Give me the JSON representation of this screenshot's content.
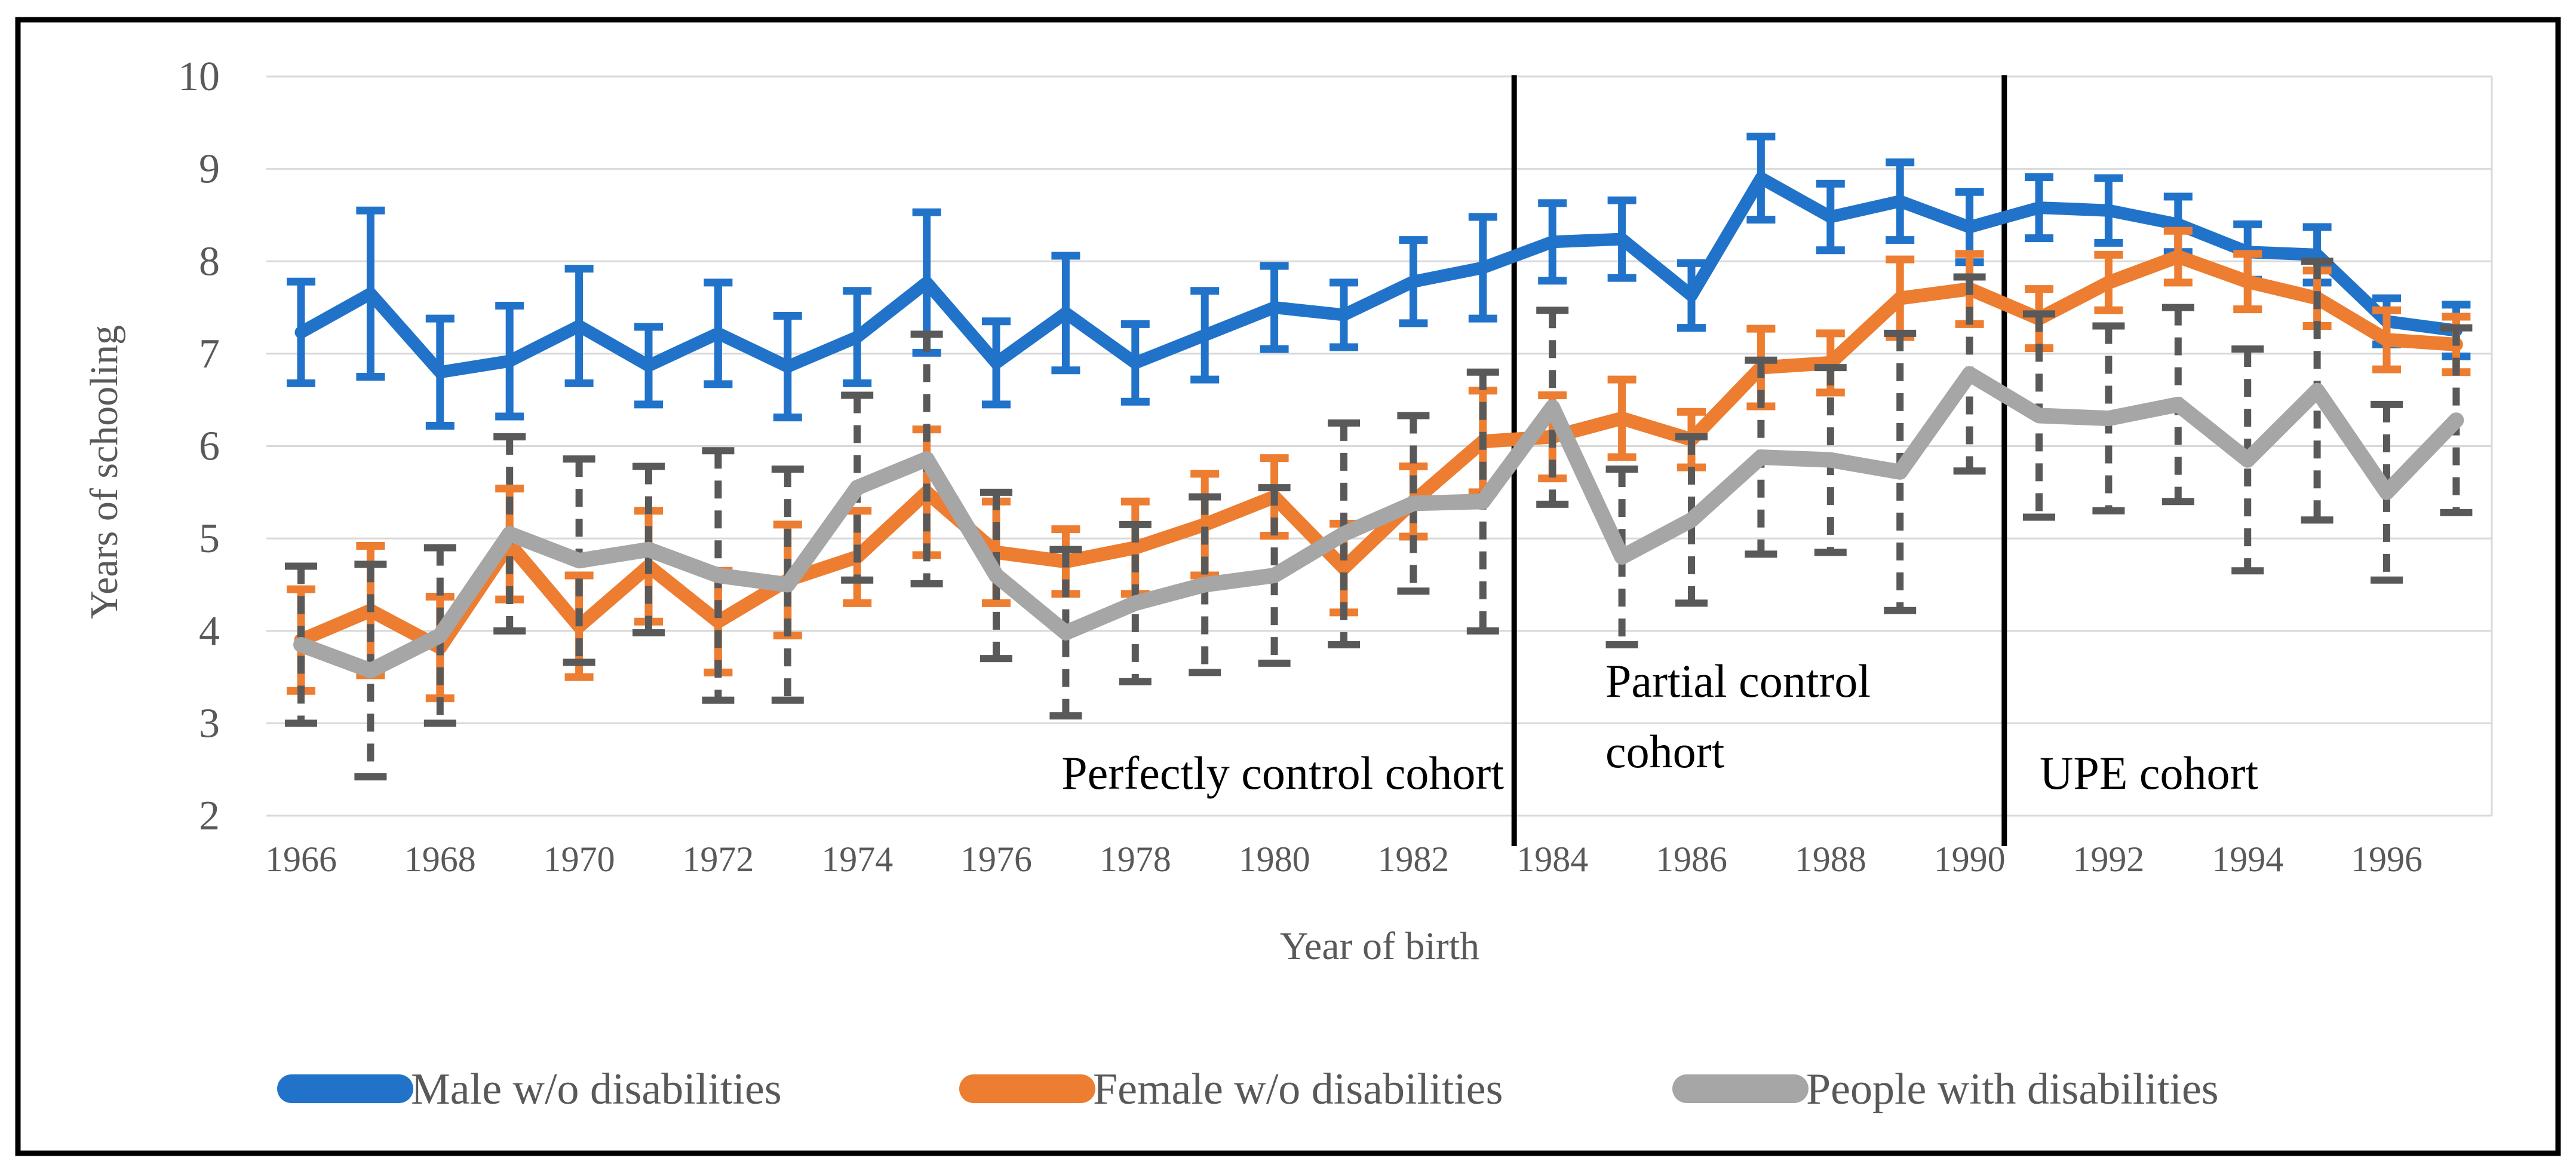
{
  "chart_data": {
    "type": "line",
    "title": "",
    "xlabel": "Year of birth",
    "ylabel": "Years of schooling",
    "x": [
      1966,
      1967,
      1968,
      1969,
      1970,
      1971,
      1972,
      1973,
      1974,
      1975,
      1976,
      1977,
      1978,
      1979,
      1980,
      1981,
      1982,
      1983,
      1984,
      1985,
      1986,
      1987,
      1988,
      1989,
      1990,
      1991,
      1992,
      1993,
      1994,
      1995,
      1996,
      1997
    ],
    "x_tick_labels": [
      "1966",
      "1968",
      "1970",
      "1972",
      "1974",
      "1976",
      "1978",
      "1980",
      "1982",
      "1984",
      "1986",
      "1988",
      "1990",
      "1992",
      "1994",
      "1996"
    ],
    "ylim": [
      2,
      10
    ],
    "yticks": [
      2,
      3,
      4,
      5,
      6,
      7,
      8,
      9,
      10
    ],
    "grid": "horizontal",
    "legend_position": "bottom",
    "series": [
      {
        "name": "Male w/o disabilities",
        "color": "#2173CA",
        "error_color": "#2173CA",
        "error_style": "solid",
        "values": [
          7.23,
          7.65,
          6.8,
          6.92,
          7.3,
          6.87,
          7.22,
          6.86,
          7.18,
          7.77,
          6.9,
          7.44,
          6.9,
          7.2,
          7.5,
          7.42,
          7.78,
          7.93,
          8.21,
          8.24,
          7.63,
          8.9,
          8.48,
          8.65,
          8.37,
          8.58,
          8.55,
          8.4,
          8.1,
          8.07,
          7.35,
          7.25
        ],
        "errors": [
          0.55,
          0.9,
          0.58,
          0.6,
          0.62,
          0.42,
          0.55,
          0.55,
          0.5,
          0.76,
          0.45,
          0.62,
          0.42,
          0.48,
          0.45,
          0.35,
          0.45,
          0.55,
          0.42,
          0.42,
          0.35,
          0.45,
          0.36,
          0.42,
          0.38,
          0.33,
          0.35,
          0.3,
          0.3,
          0.3,
          0.25,
          0.28
        ]
      },
      {
        "name": "Female w/o disabilities",
        "color": "#ED7D31",
        "error_color": "#ED7D31",
        "error_style": "solid",
        "values": [
          3.9,
          4.22,
          3.82,
          4.94,
          4.05,
          4.7,
          4.1,
          4.55,
          4.8,
          5.5,
          4.85,
          4.75,
          4.9,
          5.15,
          5.45,
          4.68,
          5.4,
          6.05,
          6.1,
          6.3,
          6.07,
          6.85,
          6.9,
          7.6,
          7.7,
          7.38,
          7.77,
          8.05,
          7.78,
          7.6,
          7.15,
          7.1
        ],
        "errors": [
          0.55,
          0.7,
          0.55,
          0.6,
          0.55,
          0.6,
          0.55,
          0.6,
          0.5,
          0.68,
          0.55,
          0.35,
          0.5,
          0.55,
          0.42,
          0.48,
          0.38,
          0.55,
          0.45,
          0.42,
          0.3,
          0.42,
          0.32,
          0.42,
          0.38,
          0.32,
          0.3,
          0.28,
          0.3,
          0.3,
          0.32,
          0.3
        ]
      },
      {
        "name": "People with disabilities",
        "color": "#A6A6A6",
        "error_color": "#595959",
        "error_style": "dashed",
        "values": [
          3.85,
          3.57,
          3.95,
          5.05,
          4.76,
          4.88,
          4.6,
          4.5,
          5.55,
          5.86,
          4.6,
          3.98,
          4.3,
          4.5,
          4.6,
          5.05,
          5.38,
          5.4,
          6.42,
          4.8,
          5.2,
          5.88,
          5.85,
          5.72,
          6.78,
          6.33,
          6.3,
          6.45,
          5.85,
          6.6,
          5.5,
          6.28
        ],
        "errors": [
          0.85,
          1.15,
          0.95,
          1.05,
          1.1,
          0.9,
          1.35,
          1.25,
          1.0,
          1.35,
          0.9,
          0.9,
          0.85,
          0.95,
          0.95,
          1.2,
          0.95,
          1.4,
          1.05,
          0.95,
          0.9,
          1.05,
          1.0,
          1.5,
          1.05,
          1.1,
          1.0,
          1.05,
          1.2,
          1.4,
          0.95,
          1.0
        ]
      }
    ],
    "dividers": [
      {
        "x": 1983.45
      },
      {
        "x": 1990.5
      }
    ],
    "annotations": {
      "perfectly": "Perfectly control cohort",
      "partial_line1": "Partial control",
      "partial_line2": "cohort",
      "upe": "UPE cohort"
    }
  },
  "legend": {
    "items": [
      {
        "label": "Male w/o disabilities",
        "color": "#2173CA"
      },
      {
        "label": "Female w/o disabilities",
        "color": "#ED7D31"
      },
      {
        "label": "People with disabilities",
        "color": "#A6A6A6"
      }
    ]
  },
  "colors": {
    "axis_text": "#595959",
    "gridline": "#D9D9D9",
    "annotation": "#000000",
    "border": "#000000"
  }
}
